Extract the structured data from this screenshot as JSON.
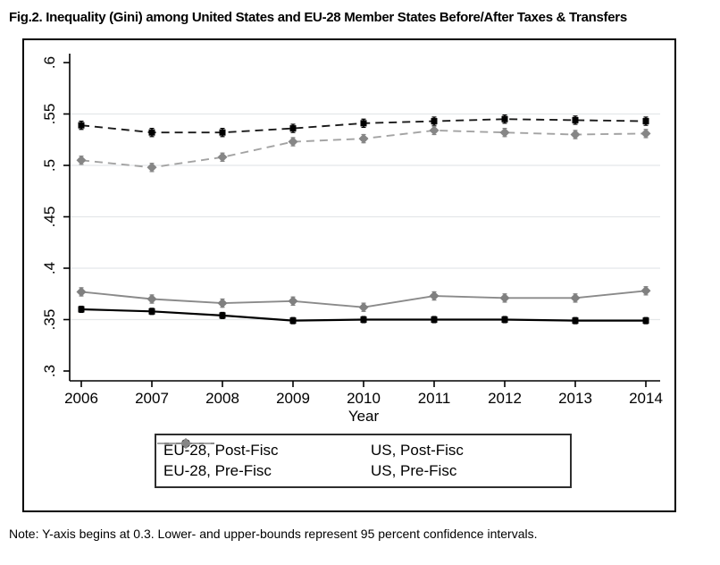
{
  "title": "Fig.2. Inequality (Gini) among United States and EU-28 Member States Before/After Taxes & Transfers",
  "note": "Note: Y-axis begins at 0.3. Lower- and upper-bounds represent 95 percent confidence intervals.",
  "chart_data": {
    "type": "line",
    "title": "",
    "xlabel": "Year",
    "ylabel": "",
    "x": [
      2006,
      2007,
      2008,
      2009,
      2010,
      2011,
      2012,
      2013,
      2014
    ],
    "ylim": [
      0.3,
      0.6
    ],
    "yticks": [
      {
        "value": 0.3,
        "label": ".3"
      },
      {
        "value": 0.35,
        "label": ".35"
      },
      {
        "value": 0.4,
        "label": ".4"
      },
      {
        "value": 0.45,
        "label": ".45"
      },
      {
        "value": 0.5,
        "label": ".5"
      },
      {
        "value": 0.55,
        "label": ".55"
      },
      {
        "value": 0.6,
        "label": ".6"
      }
    ],
    "grid_values": [
      0.35,
      0.4,
      0.45,
      0.5,
      0.55
    ],
    "grid_on": true,
    "grid_color": "#e4e7e9",
    "axis_color": "#000000",
    "legend_position": "bottom-box",
    "series": [
      {
        "name": "EU-28, Post-Fisc",
        "values": [
          0.36,
          0.358,
          0.354,
          0.349,
          0.35,
          0.35,
          0.35,
          0.349,
          0.349
        ],
        "ci": 0.003,
        "line": "solid",
        "line_color": "#000000",
        "marker": "square",
        "marker_color": "#000000",
        "legend_marker": "circle"
      },
      {
        "name": "US, Post-Fisc",
        "values": [
          0.377,
          0.37,
          0.366,
          0.368,
          0.362,
          0.373,
          0.371,
          0.371,
          0.378
        ],
        "ci": 0.004,
        "line": "solid",
        "line_color": "#8a8a8a",
        "marker": "diamond",
        "marker_color": "#808080",
        "legend_marker": "diamond"
      },
      {
        "name": "EU-28, Pre-Fisc",
        "values": [
          0.539,
          0.532,
          0.532,
          0.536,
          0.541,
          0.543,
          0.545,
          0.544,
          0.543
        ],
        "ci": 0.004,
        "line": "dashed",
        "line_color": "#1a1a1a",
        "marker": "square",
        "marker_color": "#000000",
        "legend_marker": "circle"
      },
      {
        "name": "US, Pre-Fisc",
        "values": [
          0.505,
          0.498,
          0.508,
          0.523,
          0.526,
          0.534,
          0.532,
          0.53,
          0.531
        ],
        "ci": 0.004,
        "line": "dashed",
        "line_color": "#a3a3a3",
        "marker": "diamond",
        "marker_color": "#868686",
        "legend_marker": "diamond"
      }
    ]
  }
}
